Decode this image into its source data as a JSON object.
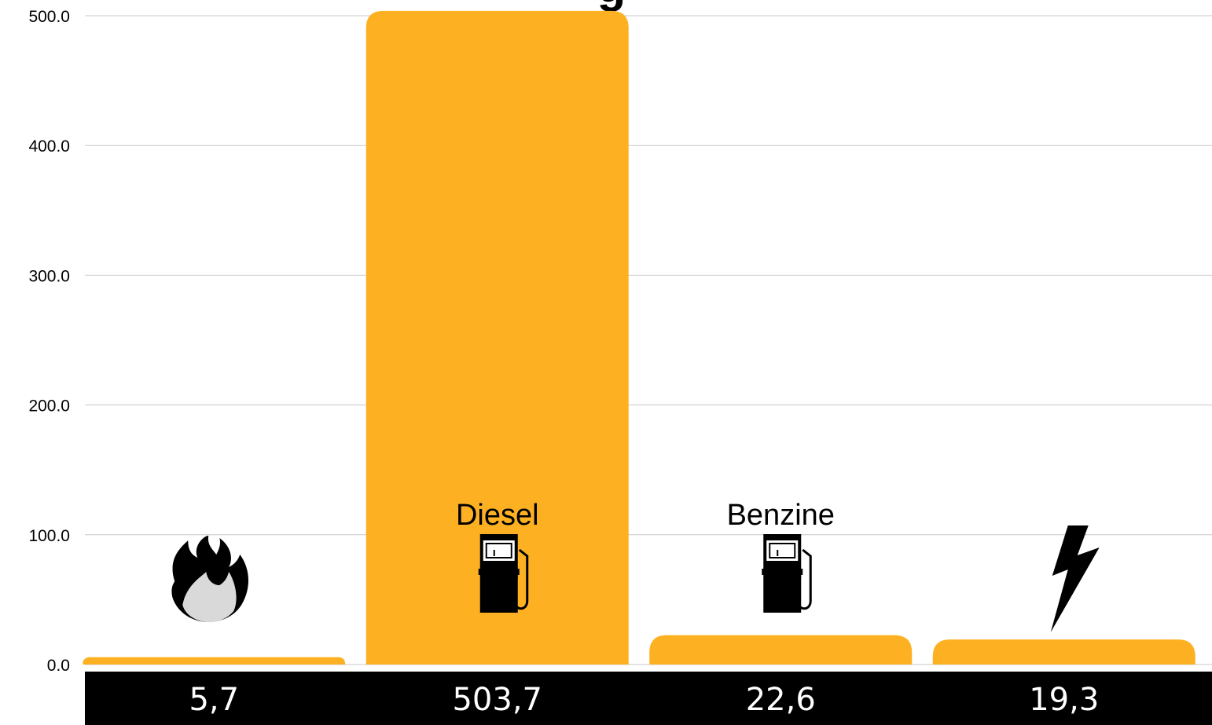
{
  "chart_data": {
    "type": "bar",
    "title_fragment": "g",
    "categories": [
      "",
      "Diesel",
      "Benzine",
      ""
    ],
    "category_icons": [
      "fire-icon",
      "fuel-pump-icon",
      "fuel-pump-icon",
      "lightning-icon"
    ],
    "values": [
      5.7,
      503.7,
      22.6,
      19.3
    ],
    "value_labels": [
      "5,7",
      "503,7",
      "22,6",
      "19,3"
    ],
    "y_ticks": [
      "0.0",
      "100.0",
      "200.0",
      "300.0",
      "400.0",
      "500.0"
    ],
    "ylim": [
      0,
      500
    ],
    "grid": true,
    "colors": {
      "bar": "#FDB122",
      "value_band": "#000000",
      "value_text": "#ffffff",
      "grid": "#c8c8c8"
    }
  }
}
